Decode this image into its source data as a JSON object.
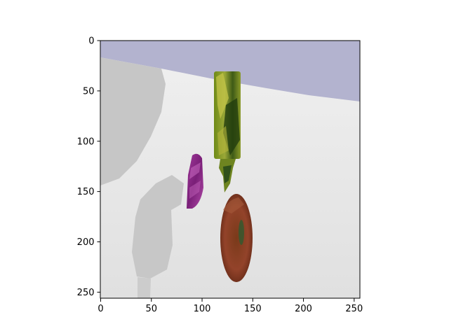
{
  "figure": {
    "background_color": "#ffffff",
    "axes_frame_color": "#000000"
  },
  "image": {
    "description_hidden": true,
    "scene_colors": {
      "sky": "#b3b3cf",
      "floor": "#e2e2e2",
      "floor_far": "#f2f2f2",
      "shadow": "#c8c8c8",
      "bottle_green": "#7a8b1e",
      "bottle_dark": "#2f4a14",
      "purple_object": "#8b2a86",
      "brown_object": "#8a3a22"
    }
  },
  "axes": {
    "xlim": [
      0,
      256
    ],
    "ylim": [
      256,
      0
    ],
    "x_ticks": [
      0,
      50,
      100,
      150,
      200,
      250
    ],
    "y_ticks": [
      0,
      50,
      100,
      150,
      200,
      250
    ],
    "x_tick_labels": [
      "0",
      "50",
      "100",
      "150",
      "200",
      "250"
    ],
    "y_tick_labels": [
      "0",
      "50",
      "100",
      "150",
      "200",
      "250"
    ]
  }
}
